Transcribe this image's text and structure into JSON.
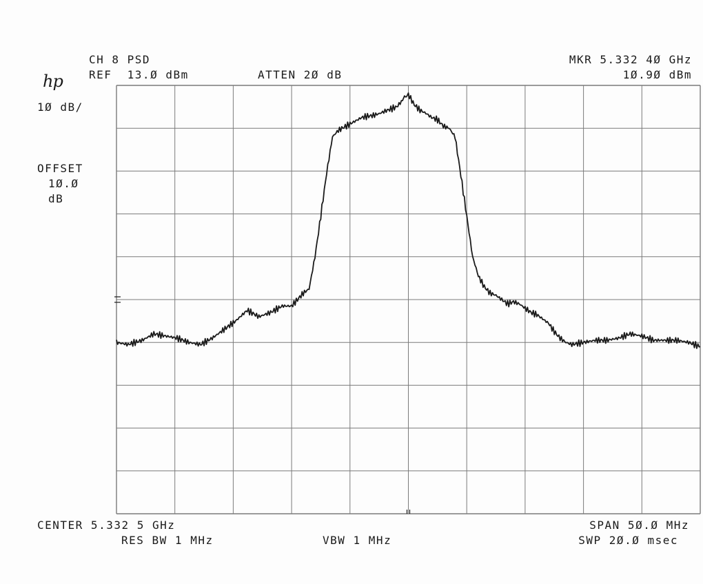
{
  "logo": "hp",
  "header": {
    "title": "CH 8 PSD",
    "ref": "REF  13.Ø dBm",
    "atten": "ATTEN 2Ø dB",
    "marker_freq": "MKR 5.332 4Ø GHz",
    "marker_level": "1Ø.9Ø dBm"
  },
  "left_panel": {
    "scale": "1Ø dB/",
    "offset_label": "OFFSET",
    "offset_value": "1Ø.Ø",
    "offset_unit": "dB"
  },
  "footer": {
    "center": "CENTER 5.332 5 GHz",
    "span": "SPAN 5Ø.Ø MHz",
    "res_bw": "RES BW 1 MHz",
    "vbw": "VBW 1 MHz",
    "sweep": "SWP 2Ø.Ø msec"
  },
  "colors": {
    "trace": "#1a1a1a",
    "grid": "#7a7a7a"
  },
  "chart_data": {
    "type": "line",
    "x_unit": "MHz offset from center",
    "y_unit": "dBm",
    "xlim": [
      -25,
      25
    ],
    "ylim": [
      -87,
      13
    ],
    "grid": true,
    "series": [
      {
        "x": [
          -25,
          -24,
          -22.8,
          -21.8,
          -20.8,
          -19.8,
          -18.8,
          -17.8,
          -16.8,
          -15.8,
          -14.8,
          -13.8,
          -12.8,
          -11.8,
          -10.8,
          -10,
          -9.5,
          -9,
          -8.5,
          -8,
          -7.5,
          -7,
          -6.5,
          -6,
          -5,
          -4,
          -3.5,
          -3,
          -2.5,
          -2,
          -1.5,
          -1,
          -0.5,
          -0.25,
          0,
          0.5,
          1,
          1.5,
          2,
          2.5,
          3,
          3.5,
          4,
          4.5,
          5,
          5.5,
          6,
          6.5,
          7,
          7.5,
          8,
          8.5,
          9,
          9.5,
          10,
          10.5,
          11,
          11.5,
          12,
          12.5,
          13,
          13.5,
          14,
          15,
          16,
          17,
          18,
          19,
          20,
          21,
          22,
          23,
          24,
          25
        ],
        "y": [
          -47,
          -47.5,
          -46.5,
          -45,
          -45.5,
          -46,
          -47,
          -47.5,
          -46,
          -44,
          -42,
          -39.5,
          -41,
          -40,
          -38.5,
          -38.5,
          -37,
          -35.5,
          -34.5,
          -27,
          -17.5,
          -7.5,
          1,
          2.5,
          4,
          5.5,
          5.8,
          6,
          6.4,
          7,
          7.5,
          8,
          9.5,
          10.5,
          10.9,
          8.5,
          7.2,
          6.5,
          5.5,
          5,
          3.5,
          3,
          1,
          -8,
          -17.5,
          -27,
          -31.5,
          -34,
          -35.5,
          -36,
          -37,
          -38,
          -37.5,
          -38,
          -39,
          -40,
          -40.5,
          -41.5,
          -42.5,
          -44.5,
          -46,
          -47,
          -47.5,
          -47,
          -46.5,
          -46.5,
          -46,
          -45,
          -45.5,
          -46.5,
          -46.5,
          -46.5,
          -47,
          -48
        ]
      }
    ]
  }
}
